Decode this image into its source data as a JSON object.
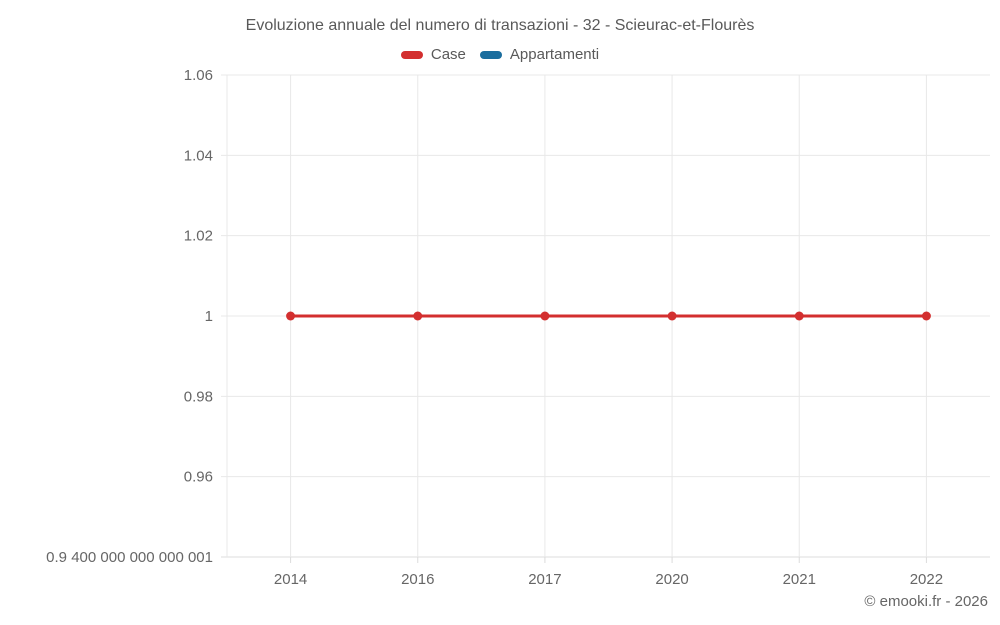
{
  "title": "Evoluzione annuale del numero di transazioni - 32 - Scieurac-et-Flourès",
  "legend": [
    {
      "label": "Case",
      "color": "#d32f2f"
    },
    {
      "label": "Appartamenti",
      "color": "#1a6d9e"
    }
  ],
  "watermark": "© emooki.fr - 2026",
  "colors": {
    "grid": "#e8e8e8",
    "axis": "#dcdcdc",
    "tick_text": "#666666"
  },
  "chart_data": {
    "type": "line",
    "title": "Evoluzione annuale del numero di transazioni - 32 - Scieurac-et-Flourès",
    "xlabel": "",
    "ylabel": "",
    "categories": [
      "2014",
      "2016",
      "2017",
      "2020",
      "2021",
      "2022"
    ],
    "series": [
      {
        "name": "Case",
        "color": "#d32f2f",
        "values": [
          1,
          1,
          1,
          1,
          1,
          1
        ]
      },
      {
        "name": "Appartamenti",
        "color": "#1a6d9e",
        "values": []
      }
    ],
    "ylim": [
      0.94,
      1.06
    ],
    "yticks": [
      {
        "value": 1.06,
        "label": "1.06"
      },
      {
        "value": 1.04,
        "label": "1.04"
      },
      {
        "value": 1.02,
        "label": "1.02"
      },
      {
        "value": 1.0,
        "label": "1"
      },
      {
        "value": 0.98,
        "label": "0.98"
      },
      {
        "value": 0.96,
        "label": "0.96"
      },
      {
        "value": 0.94,
        "label": "0.9 400 000 000 000 001"
      }
    ],
    "grid": true,
    "legend_position": "top"
  }
}
